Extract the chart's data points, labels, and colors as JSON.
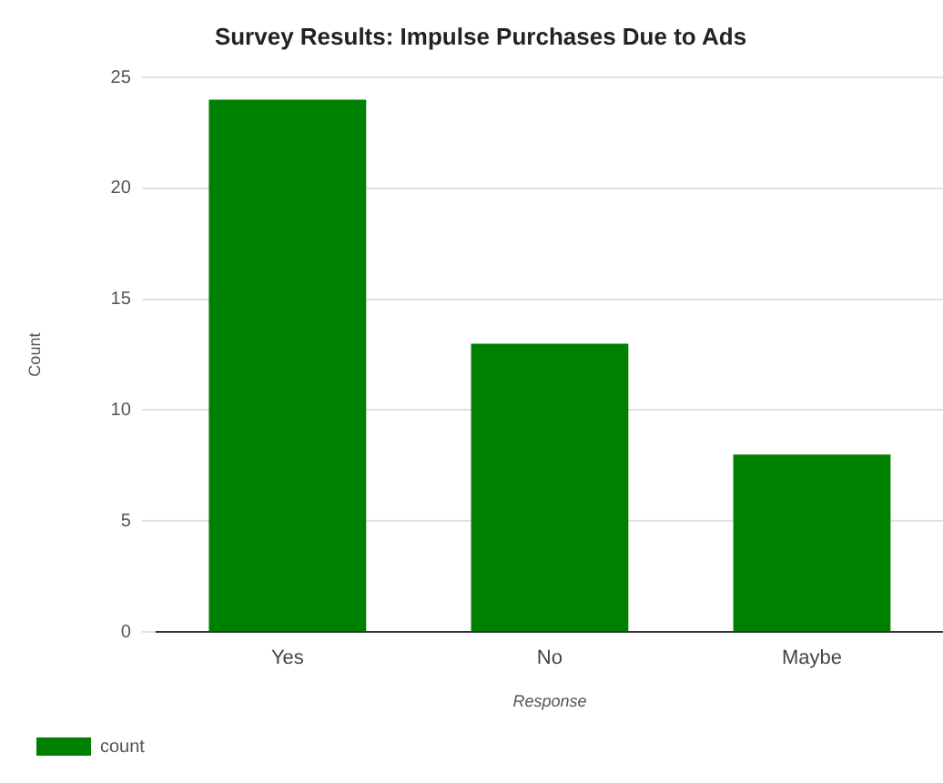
{
  "chart_data": {
    "type": "bar",
    "title": "Survey Results: Impulse Purchases Due to Ads",
    "xlabel": "Response",
    "ylabel": "Count",
    "categories": [
      "Yes",
      "No",
      "Maybe"
    ],
    "series": [
      {
        "name": "count",
        "color": "#008000",
        "values": [
          24,
          13,
          8
        ]
      }
    ],
    "ylim": [
      0,
      25
    ],
    "yticks": [
      0,
      5,
      10,
      15,
      20,
      25
    ],
    "grid": "y",
    "legend": "bottom left"
  }
}
